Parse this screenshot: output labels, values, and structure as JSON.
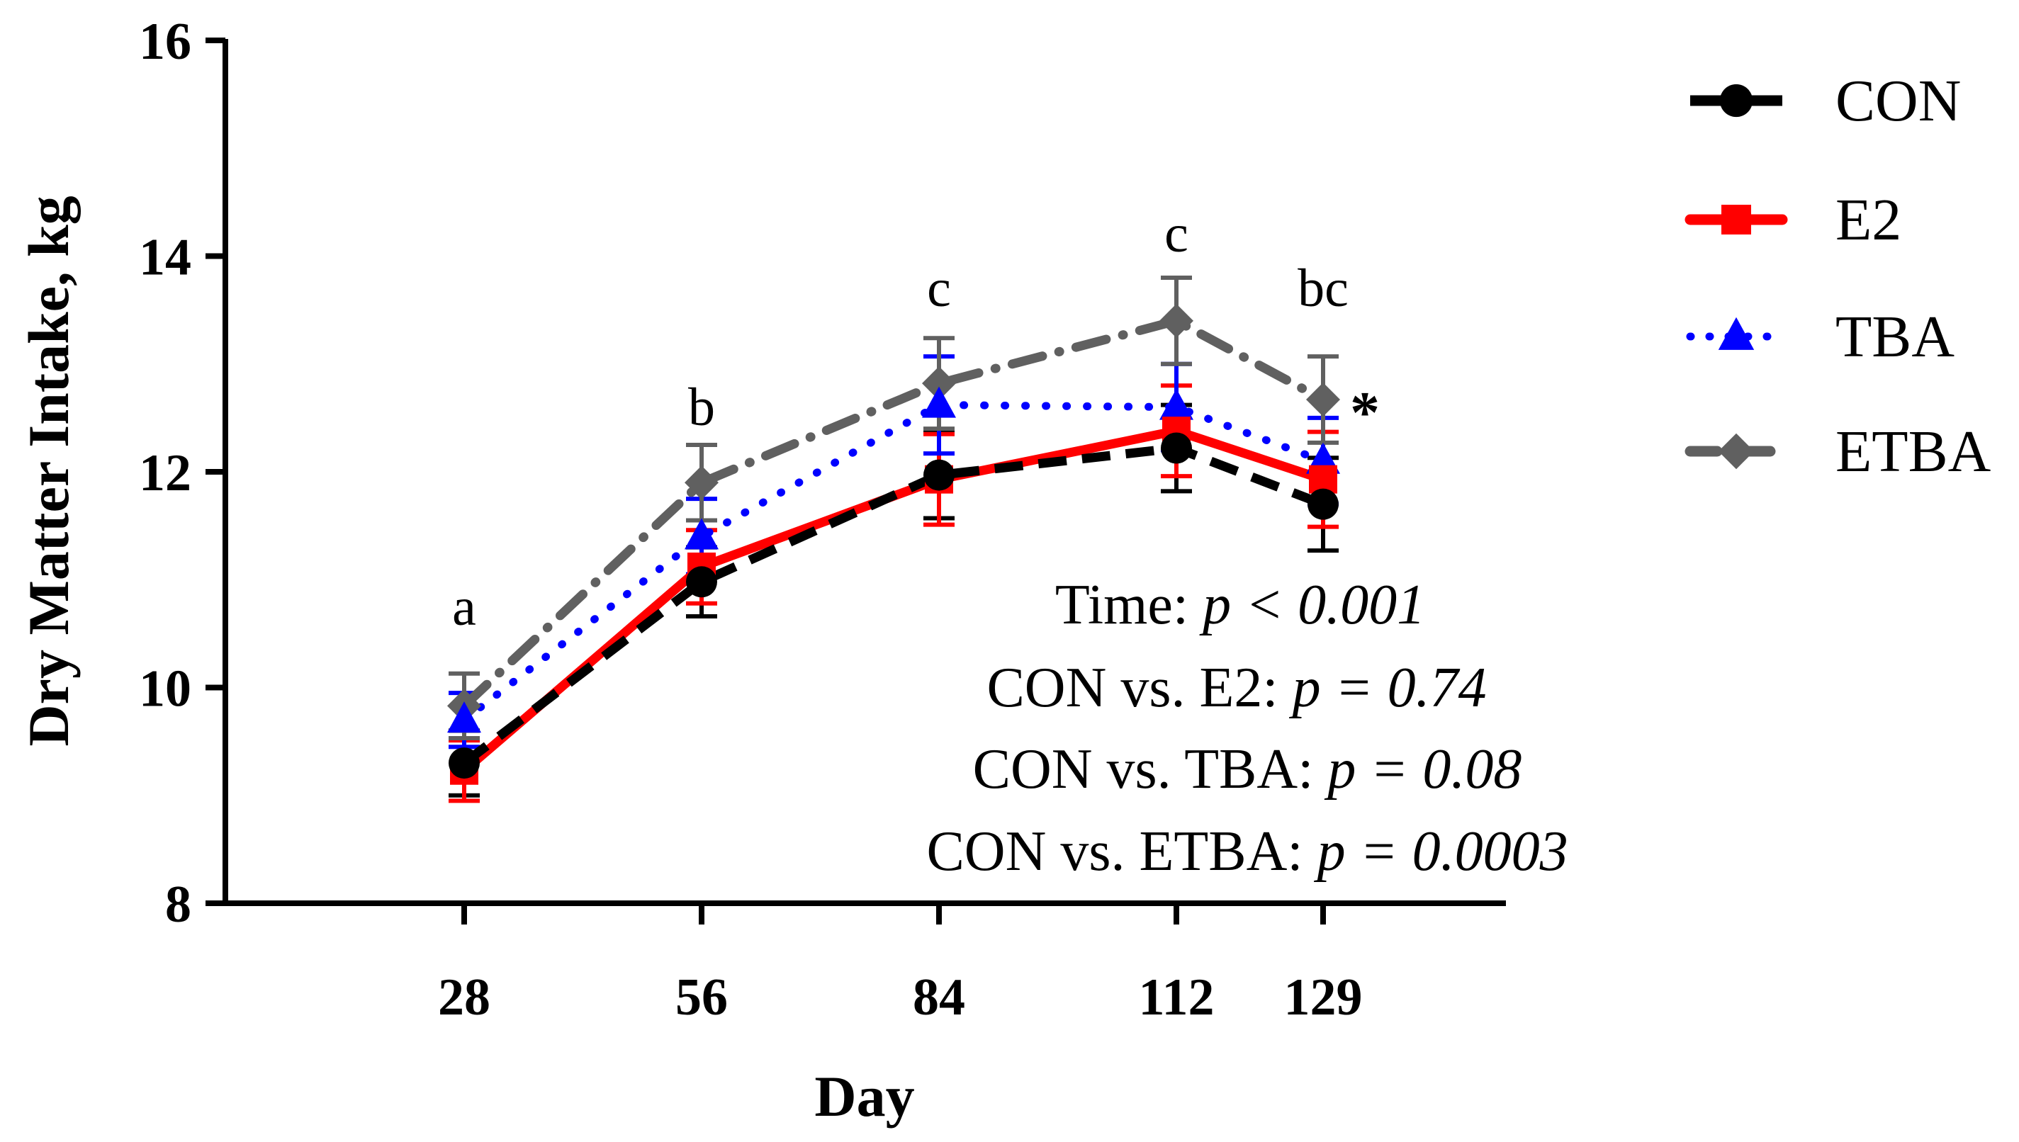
{
  "chart_data": {
    "type": "line",
    "title": "",
    "xlabel": "Day",
    "ylabel": "Dry Matter Intake, kg",
    "x": [
      28,
      56,
      84,
      112,
      129
    ],
    "x_tick_labels": [
      "28",
      "56",
      "84",
      "112",
      "129"
    ],
    "xlim": [
      0,
      150
    ],
    "ylim": [
      8,
      16
    ],
    "y_ticks": [
      8,
      10,
      12,
      14,
      16
    ],
    "y_tick_labels": [
      "8",
      "10",
      "12",
      "14",
      "16"
    ],
    "grid": false,
    "legend_position": "top-right outside",
    "series": [
      {
        "name": "CON",
        "color": "#000000",
        "marker": "circle",
        "line": "dashed",
        "values": [
          9.3,
          10.98,
          11.97,
          12.22,
          11.7
        ],
        "errors": [
          0.3,
          0.32,
          0.4,
          0.4,
          0.43
        ]
      },
      {
        "name": "E2",
        "color": "#ff0000",
        "marker": "square",
        "line": "solid",
        "values": [
          9.23,
          11.12,
          11.93,
          12.38,
          11.93
        ],
        "errors": [
          0.28,
          0.34,
          0.42,
          0.42,
          0.44
        ]
      },
      {
        "name": "TBA",
        "color": "#0000ff",
        "marker": "triangle",
        "line": "dotted",
        "values": [
          9.7,
          11.4,
          12.62,
          12.6,
          12.1
        ],
        "errors": [
          0.25,
          0.35,
          0.45,
          0.4,
          0.4
        ]
      },
      {
        "name": "ETBA",
        "color": "#606060",
        "marker": "diamond",
        "line": "dash-dot",
        "values": [
          9.83,
          11.9,
          12.82,
          13.4,
          12.67
        ],
        "errors": [
          0.3,
          0.35,
          0.42,
          0.4,
          0.4
        ]
      }
    ],
    "letter_annotations": [
      {
        "x": 28,
        "text": "a"
      },
      {
        "x": 56,
        "text": "b"
      },
      {
        "x": 84,
        "text": "c"
      },
      {
        "x": 112,
        "text": "c"
      },
      {
        "x": 129,
        "text": "bc"
      }
    ],
    "significance_marker": {
      "x": 129,
      "text": "*"
    },
    "stats": [
      {
        "label": "Time: ",
        "p": "p < 0.001"
      },
      {
        "label": "CON vs.  E2: ",
        "p": "p = 0.74"
      },
      {
        "label": "CON vs. TBA: ",
        "p": "p = 0.08"
      },
      {
        "label": "CON vs. ETBA: ",
        "p": "p = 0.0003"
      }
    ]
  }
}
